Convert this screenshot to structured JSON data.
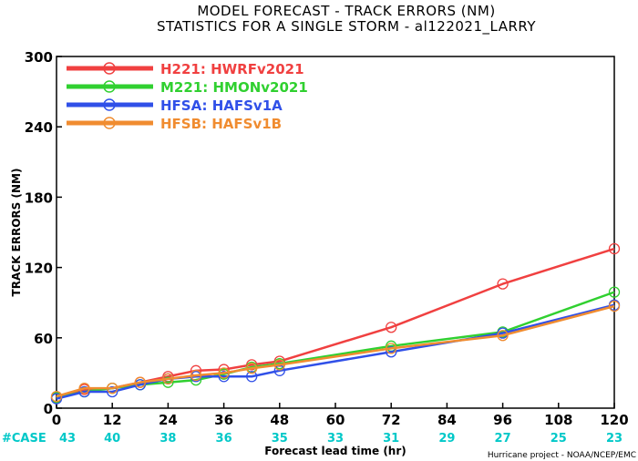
{
  "chart_data": {
    "type": "line",
    "title": "MODEL FORECAST - TRACK ERRORS (NM)",
    "subtitle": "STATISTICS FOR A SINGLE STORM - al122021_LARRY",
    "xlabel": "Forecast lead time (hr)",
    "ylabel": "TRACK ERRORS (NM)",
    "xlim": [
      0,
      120
    ],
    "ylim": [
      0,
      300
    ],
    "x_ticks": [
      "0",
      "12",
      "24",
      "36",
      "48",
      "60",
      "72",
      "84",
      "96",
      "108",
      "120"
    ],
    "y_ticks": [
      "0",
      "60",
      "120",
      "180",
      "240",
      "300"
    ],
    "grid": false,
    "legend_position": "top-left",
    "case_label": "#CASE",
    "case_color": "#00c8c8",
    "cases": [
      {
        "x": 0,
        "n": "43"
      },
      {
        "x": 12,
        "n": "40"
      },
      {
        "x": 24,
        "n": "38"
      },
      {
        "x": 36,
        "n": "36"
      },
      {
        "x": 48,
        "n": "35"
      },
      {
        "x": 60,
        "n": "33"
      },
      {
        "x": 72,
        "n": "31"
      },
      {
        "x": 84,
        "n": "29"
      },
      {
        "x": 96,
        "n": "27"
      },
      {
        "x": 108,
        "n": "25"
      },
      {
        "x": 120,
        "n": "23"
      }
    ],
    "series": [
      {
        "name": "H221: HWRFv2021",
        "color": "#f04040",
        "x": [
          0,
          6,
          12,
          18,
          24,
          30,
          36,
          42,
          48,
          72,
          96,
          120
        ],
        "y": [
          9,
          16,
          17,
          22,
          27,
          32,
          33,
          37,
          40,
          69,
          106,
          136
        ]
      },
      {
        "name": "M221: HMONv2021",
        "color": "#30d030",
        "x": [
          0,
          6,
          12,
          18,
          24,
          30,
          36,
          42,
          48,
          72,
          96,
          120
        ],
        "y": [
          9,
          14,
          17,
          20,
          22,
          24,
          29,
          35,
          38,
          53,
          65,
          99
        ]
      },
      {
        "name": "HFSA: HAFSv1A",
        "color": "#3050e8",
        "x": [
          0,
          6,
          12,
          18,
          24,
          30,
          36,
          42,
          48,
          72,
          96,
          120
        ],
        "y": [
          8,
          14,
          14,
          20,
          25,
          27,
          27,
          27,
          32,
          48,
          64,
          88
        ]
      },
      {
        "name": "HFSB: HAFSv1B",
        "color": "#f08c30",
        "x": [
          0,
          6,
          12,
          18,
          24,
          30,
          36,
          42,
          48,
          72,
          96,
          120
        ],
        "y": [
          10,
          17,
          17,
          22,
          25,
          28,
          30,
          34,
          37,
          51,
          62,
          87
        ]
      }
    ]
  },
  "credit": "Hurricane project - NOAA/NCEP/EMC"
}
